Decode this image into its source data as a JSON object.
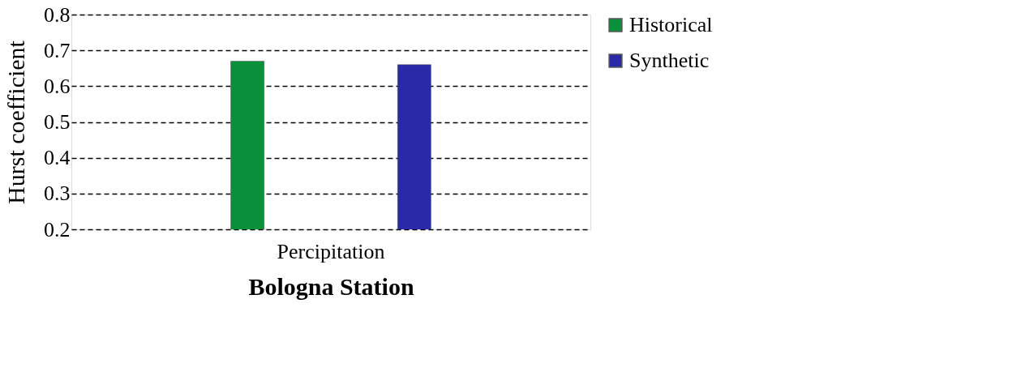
{
  "chart_data": {
    "type": "bar",
    "xlabel": "Bologna Station",
    "ylabel": "Hurst coefficient",
    "categories": [
      "Percipitation"
    ],
    "series": [
      {
        "name": "Historical",
        "color": "#0a8f3a",
        "values": [
          0.67
        ]
      },
      {
        "name": "Synthetic",
        "color": "#2a2aa8",
        "values": [
          0.66
        ]
      }
    ],
    "ylim": [
      0.2,
      0.8
    ],
    "yticks": [
      0.2,
      0.3,
      0.4,
      0.5,
      0.6,
      0.7,
      0.8
    ],
    "grid": "y",
    "legend": "right"
  }
}
